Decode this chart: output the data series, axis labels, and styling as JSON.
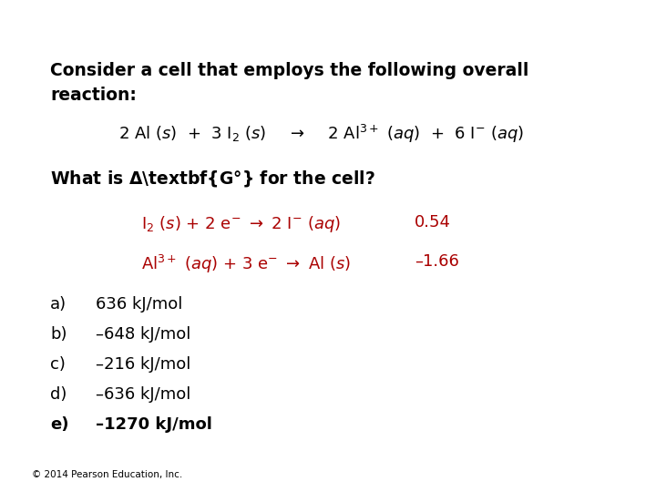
{
  "background_color": "#ffffff",
  "answer_color": "#aa0000",
  "copyright": "© 2014 Pearson Education, Inc.",
  "fig_width": 7.2,
  "fig_height": 5.4,
  "dpi": 100,
  "title_line1": "Consider a cell that employs the following overall",
  "title_line2": "reaction:",
  "what_is": "What is ΔG° for the cell?",
  "choices": [
    [
      "a)",
      "636 kJ/mol",
      false
    ],
    [
      "b)",
      "–648 kJ/mol",
      false
    ],
    [
      "c)",
      "–216 kJ/mol",
      false
    ],
    [
      "d)",
      "–636 kJ/mol",
      false
    ],
    [
      "e)",
      "–1270 kJ/mol",
      true
    ]
  ]
}
